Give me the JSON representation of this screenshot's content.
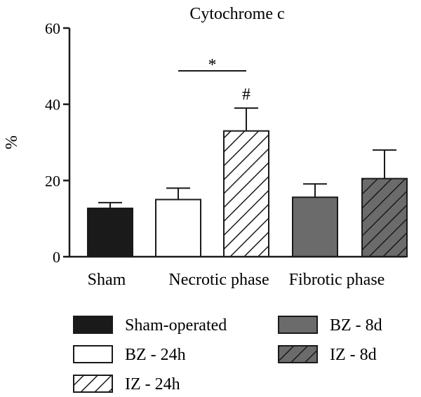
{
  "chart_data": {
    "type": "bar",
    "title": "Cytochrome c",
    "ylabel": "%",
    "xlabel": "",
    "ylim": [
      0,
      60
    ],
    "yticks": [
      0,
      20,
      40,
      60
    ],
    "grid": false,
    "legend_placement": "bottom",
    "groups": [
      {
        "label": "Sham"
      },
      {
        "label": "Necrotic phase"
      },
      {
        "label": "Fibrotic phase"
      }
    ],
    "bars": [
      {
        "series": "Sham-operated",
        "group": "Sham",
        "value": 12.7,
        "error": 1.5,
        "pattern": "solid-black"
      },
      {
        "series": "BZ - 24h",
        "group": "Necrotic phase",
        "value": 15.0,
        "error": 3.0,
        "pattern": "white"
      },
      {
        "series": "IZ - 24h",
        "group": "Necrotic phase",
        "value": 33.0,
        "error": 6.0,
        "pattern": "hatch-white"
      },
      {
        "series": "BZ - 8d",
        "group": "Fibrotic phase",
        "value": 15.6,
        "error": 3.5,
        "pattern": "solid-gray"
      },
      {
        "series": "IZ - 8d",
        "group": "Fibrotic phase",
        "value": 20.5,
        "error": 7.5,
        "pattern": "hatch-gray"
      }
    ],
    "annotations": [
      {
        "text": "*",
        "between": [
          "BZ - 24h",
          "IZ - 24h"
        ]
      },
      {
        "text": "#",
        "above": "IZ - 24h"
      }
    ],
    "legend": [
      {
        "label": "Sham-operated",
        "pattern": "solid-black"
      },
      {
        "label": "BZ - 24h",
        "pattern": "white"
      },
      {
        "label": "IZ - 24h",
        "pattern": "hatch-white"
      },
      {
        "label": "BZ - 8d",
        "pattern": "solid-gray"
      },
      {
        "label": "IZ - 8d",
        "pattern": "hatch-gray"
      }
    ],
    "colors": {
      "black": "#1a1a1a",
      "gray": "#6b6b6b",
      "white": "#ffffff"
    }
  }
}
